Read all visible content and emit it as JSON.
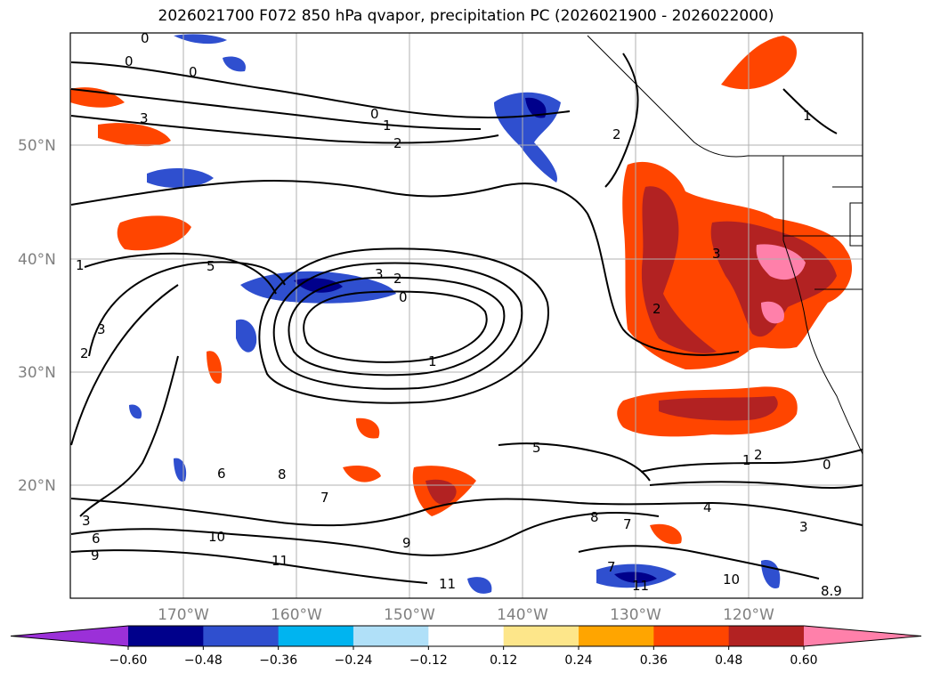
{
  "title": "2026021700 F072 850 hPa qvapor, precipitation PC (2026021900 - 2026022000)",
  "map": {
    "lat_labels": [
      "50°N",
      "40°N",
      "30°N",
      "20°N"
    ],
    "lon_labels": [
      "170°W",
      "160°W",
      "150°W",
      "140°W",
      "130°W",
      "120°W"
    ],
    "contour_labels": [
      "0",
      "0",
      "0",
      "3",
      "0",
      "1",
      "2",
      "5",
      "3",
      "2",
      "0",
      "1",
      "1",
      "2",
      "3",
      "2",
      "1",
      "3",
      "6",
      "8",
      "7",
      "9",
      "10",
      "9",
      "11",
      "11",
      "5",
      "6",
      "2",
      "1",
      "0",
      "4",
      "3",
      "8",
      "7",
      "7",
      "11",
      "10",
      "8.9",
      "3",
      "2"
    ]
  },
  "colorbar": {
    "ticks": [
      "−0.60",
      "−0.48",
      "−0.36",
      "−0.24",
      "−0.12",
      "0.12",
      "0.24",
      "0.36",
      "0.48",
      "0.60"
    ],
    "colors": [
      "#9b30d8",
      "#00008b",
      "#2f4fcf",
      "#00b4f0",
      "#b0e0f8",
      "#ffffff",
      "#fde68a",
      "#ffa500",
      "#ff4500",
      "#b22222",
      "#ff80aa"
    ]
  }
}
